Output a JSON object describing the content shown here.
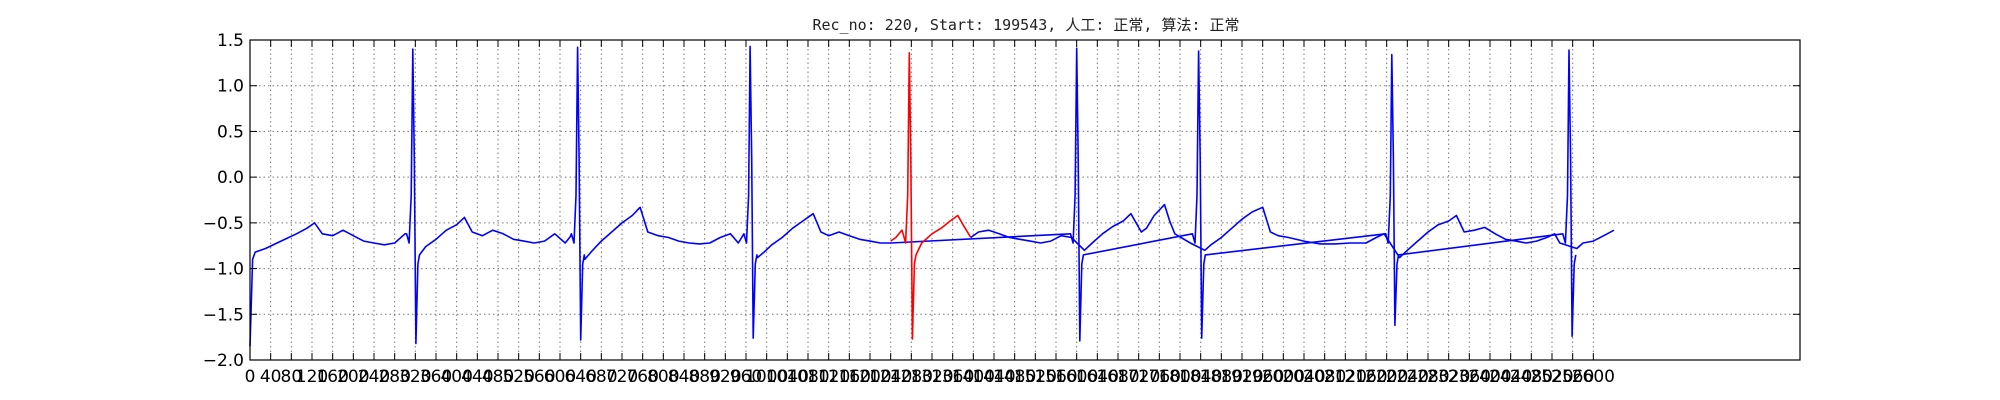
{
  "chart_data": {
    "type": "line",
    "title": "Rec_no: 220, Start: 199543, 人工: 正常, 算法: 正常",
    "xlabel": "",
    "ylabel": "",
    "xlim": [
      0,
      3000
    ],
    "ylim": [
      -2.0,
      1.5
    ],
    "grid": true,
    "grid_style": "dotted",
    "yticks": [
      -2.0,
      -1.5,
      -1.0,
      -0.5,
      0.0,
      0.5,
      1.0,
      1.5
    ],
    "yticklabels": [
      "−2.0",
      "−1.5",
      "−1.0",
      "−0.5",
      "0.0",
      "0.5",
      "1.0",
      "1.5"
    ],
    "xticks": [
      0,
      40,
      80,
      120,
      160,
      200,
      240,
      280,
      320,
      360,
      400,
      440,
      480,
      520,
      560,
      600,
      640,
      680,
      720,
      760,
      800,
      840,
      880,
      920,
      960,
      1000,
      1040,
      1080,
      1120,
      1160,
      1200,
      1240,
      1280,
      1320,
      1360,
      1400,
      1440,
      1480,
      1520,
      1560,
      1600,
      1640,
      1680,
      1720,
      1760,
      1800,
      1840,
      1880,
      1920,
      1960,
      2000,
      2040,
      2080,
      2120,
      2160,
      2200,
      2240,
      2280,
      2320,
      2360,
      2400,
      2440,
      2480,
      2520,
      2560,
      2600
    ],
    "xticklabels": [
      "0",
      "40",
      "80",
      "120",
      "160",
      "200",
      "240",
      "280",
      "320",
      "360",
      "400",
      "440",
      "480",
      "520",
      "560",
      "600",
      "640",
      "680",
      "720",
      "760",
      "800",
      "840",
      "880",
      "920",
      "960",
      "1000",
      "1040",
      "1080",
      "1120",
      "1160",
      "1200",
      "1240",
      "1280",
      "1320",
      "1360",
      "1400",
      "1440",
      "1480",
      "1520",
      "1560",
      "1600",
      "1640",
      "1680",
      "1720",
      "1760",
      "1800",
      "1840",
      "1880",
      "1920",
      "1960",
      "2000",
      "2040",
      "2080",
      "2120",
      "2160",
      "2200",
      "2240",
      "2280",
      "2320",
      "2360",
      "2400",
      "2440",
      "2480",
      "2520",
      "2560",
      "2600"
    ],
    "series": [
      {
        "color": "#0000ff",
        "beats": [
          {
            "r": 315,
            "peak": 1.4,
            "min": -1.82
          },
          {
            "r": 634,
            "peak": 1.42,
            "min": -1.78
          },
          {
            "r": 968,
            "peak": 1.43,
            "min": -1.76
          },
          {
            "r": 1600,
            "peak": 1.41,
            "min": -1.79
          },
          {
            "r": 1836,
            "peak": 1.38,
            "min": -1.76
          },
          {
            "r": 2210,
            "peak": 1.34,
            "min": -1.62
          },
          {
            "r": 2553,
            "peak": 1.39,
            "min": -1.74
          }
        ],
        "x": [
          0,
          5,
          10,
          30,
          60,
          90,
          110,
          125,
          140,
          160,
          180,
          200,
          220,
          240,
          260,
          280,
          300,
          328,
          340,
          360,
          380,
          400,
          415,
          430,
          450,
          470,
          490,
          510,
          530,
          550,
          570,
          590,
          610,
          620,
          648,
          660,
          680,
          700,
          720,
          740,
          755,
          770,
          790,
          810,
          830,
          850,
          870,
          890,
          910,
          930,
          945,
          955,
          982,
          995,
          1010,
          1030,
          1050,
          1070,
          1090,
          1105,
          1120,
          1140,
          1160,
          1180,
          1200,
          1220,
          1240
        ],
        "y": [
          -1.85,
          -0.9,
          -0.82,
          -0.78,
          -0.7,
          -0.62,
          -0.56,
          -0.5,
          -0.62,
          -0.64,
          -0.58,
          -0.64,
          -0.7,
          -0.72,
          -0.74,
          -0.72,
          -0.62,
          -0.82,
          -0.76,
          -0.68,
          -0.58,
          -0.52,
          -0.44,
          -0.6,
          -0.64,
          -0.58,
          -0.62,
          -0.68,
          -0.7,
          -0.72,
          -0.7,
          -0.62,
          -0.72,
          -0.65,
          -0.9,
          -0.82,
          -0.7,
          -0.6,
          -0.5,
          -0.42,
          -0.33,
          -0.6,
          -0.64,
          -0.66,
          -0.7,
          -0.72,
          -0.73,
          -0.72,
          -0.66,
          -0.62,
          -0.72,
          -0.7,
          -0.88,
          -0.82,
          -0.74,
          -0.66,
          -0.56,
          -0.48,
          -0.4,
          -0.6,
          -0.64,
          -0.6,
          -0.64,
          -0.68,
          -0.7,
          -0.72,
          -0.72
        ]
      },
      {
        "color": "#ff0000",
        "beats": [
          {
            "r": 1276,
            "peak": 1.36,
            "min": -1.77
          }
        ],
        "x": [
          1240,
          1250,
          1262,
          1270,
          1288,
          1300,
          1320,
          1340,
          1355,
          1370,
          1380,
          1395
        ],
        "y": [
          -0.7,
          -0.66,
          -0.58,
          -0.68,
          -0.82,
          -0.72,
          -0.62,
          -0.55,
          -0.48,
          -0.42,
          -0.52,
          -0.66
        ]
      },
      {
        "color": "#0000ff",
        "beats": [],
        "x": [
          1395,
          1410,
          1430,
          1450,
          1470,
          1490,
          1510,
          1530,
          1550,
          1570,
          1590,
          1615,
          1630,
          1650,
          1670,
          1690,
          1705,
          1715,
          1725,
          1735,
          1750,
          1770,
          1780,
          1790,
          1820,
          1848,
          1860,
          1880,
          1900,
          1920,
          1940,
          1960,
          1975,
          1990,
          2010,
          2040,
          2070,
          2100,
          2130,
          2160,
          2180,
          2195,
          2225,
          2240,
          2260,
          2280,
          2300,
          2320,
          2335,
          2350,
          2370,
          2390,
          2410,
          2430,
          2450,
          2470,
          2490,
          2510,
          2525,
          2535,
          2568,
          2580,
          2600,
          2620,
          2640
        ],
        "y": [
          -0.66,
          -0.6,
          -0.58,
          -0.62,
          -0.66,
          -0.68,
          -0.7,
          -0.72,
          -0.7,
          -0.64,
          -0.66,
          -0.8,
          -0.72,
          -0.62,
          -0.54,
          -0.48,
          -0.4,
          -0.5,
          -0.6,
          -0.56,
          -0.42,
          -0.3,
          -0.48,
          -0.62,
          -0.72,
          -0.8,
          -0.74,
          -0.66,
          -0.56,
          -0.46,
          -0.38,
          -0.33,
          -0.6,
          -0.64,
          -0.66,
          -0.7,
          -0.73,
          -0.73,
          -0.72,
          -0.72,
          -0.66,
          -0.62,
          -0.88,
          -0.8,
          -0.7,
          -0.6,
          -0.52,
          -0.48,
          -0.42,
          -0.6,
          -0.58,
          -0.55,
          -0.62,
          -0.68,
          -0.7,
          -0.72,
          -0.7,
          -0.66,
          -0.62,
          -0.72,
          -0.78,
          -0.72,
          -0.7,
          -0.64,
          -0.58
        ]
      }
    ]
  }
}
